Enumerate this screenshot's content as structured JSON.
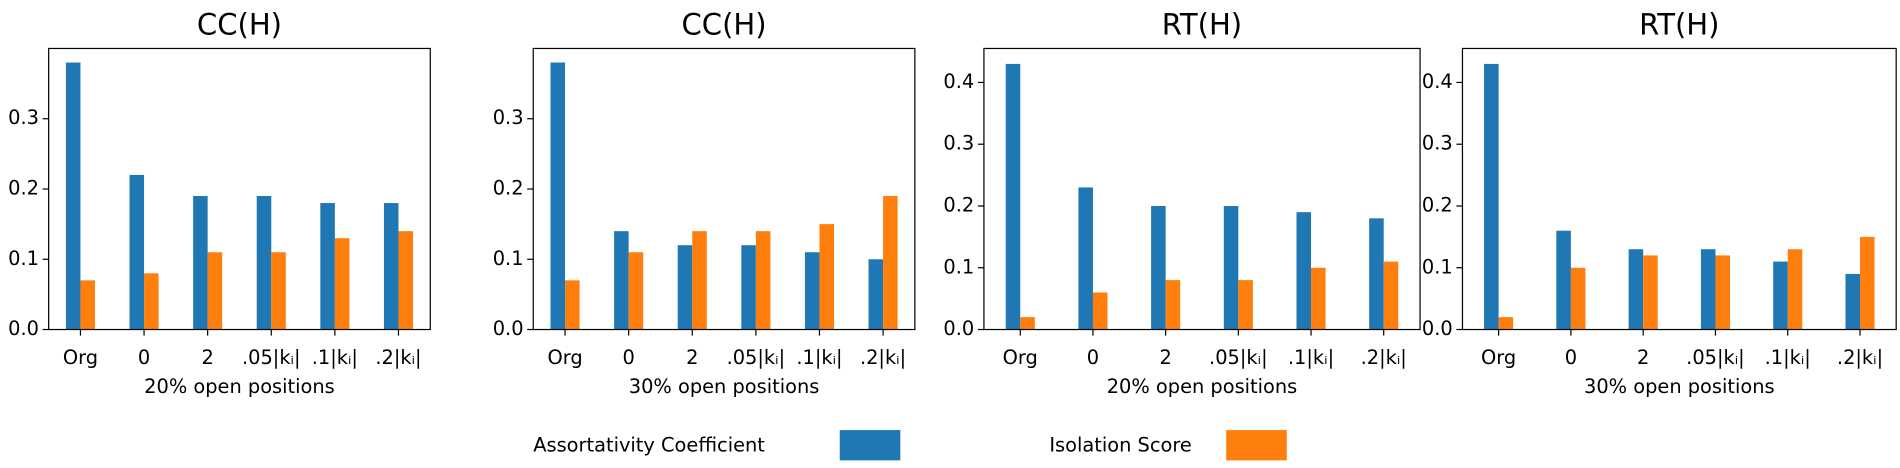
{
  "chart_data": [
    {
      "type": "bar",
      "title": "CC(H)",
      "xlabel": "20% open positions",
      "categories": [
        "Org",
        "0",
        "2",
        ".05|kᵢ|",
        ".1|kᵢ|",
        ".2|kᵢ|"
      ],
      "series": [
        {
          "name": "Assortativity Coefficient",
          "color": "#1f77b4",
          "values": [
            0.38,
            0.22,
            0.19,
            0.19,
            0.18,
            0.18
          ]
        },
        {
          "name": "Isolation Score",
          "color": "#ff7f0e",
          "values": [
            0.07,
            0.08,
            0.11,
            0.11,
            0.13,
            0.14
          ]
        }
      ],
      "ylim": [
        0,
        0.4
      ],
      "yticks": [
        {
          "value": 0,
          "label": "0.0"
        },
        0.1,
        0.2,
        0.3
      ]
    },
    {
      "type": "bar",
      "title": "CC(H)",
      "xlabel": "30% open positions",
      "categories": [
        "Org",
        "0",
        "2",
        ".05|kᵢ|",
        ".1|kᵢ|",
        ".2|kᵢ|"
      ],
      "series": [
        {
          "color": "#1f77b4",
          "values": [
            0.38,
            0.14,
            0.12,
            0.12,
            0.11,
            0.1
          ]
        },
        {
          "color": "#ff7f0e",
          "values": [
            0.07,
            0.11,
            0.14,
            0.14,
            0.15,
            0.19
          ]
        }
      ],
      "ylim": [
        0,
        0.4
      ],
      "yticks": [
        {
          "value": 0,
          "label": "0.0"
        },
        0.1,
        0.2,
        0.3
      ]
    },
    {
      "type": "bar",
      "title": "RT(H)",
      "xlabel": "20% open positions",
      "categories": [
        "Org",
        "0",
        "2",
        ".05|kᵢ|",
        ".1|kᵢ|",
        ".2|kᵢ|"
      ],
      "series": [
        {
          "color": "#1f77b4",
          "values": [
            0.43,
            0.23,
            0.2,
            0.2,
            0.19,
            0.18
          ]
        },
        {
          "color": "#ff7f0e",
          "values": [
            0.02,
            0.06,
            0.08,
            0.08,
            0.1,
            0.11
          ]
        }
      ],
      "ylim": [
        0,
        0.455
      ],
      "yticks": [
        {
          "value": 0,
          "label": "0.0"
        },
        0.1,
        0.2,
        0.3,
        0.4
      ]
    },
    {
      "type": "bar",
      "title": "RT(H)",
      "xlabel": "30% open positions",
      "categories": [
        "Org",
        "0",
        "2",
        ".05|kᵢ|",
        ".1|kᵢ|",
        ".2|kᵢ|"
      ],
      "series": [
        {
          "color": "#1f77b4",
          "values": [
            0.43,
            0.16,
            0.13,
            0.13,
            0.11,
            0.09
          ]
        },
        {
          "color": "#ff7f0e",
          "values": [
            0.02,
            0.1,
            0.12,
            0.12,
            0.13,
            0.15
          ]
        }
      ],
      "ylim": [
        0,
        0.455
      ],
      "yticks": [
        {
          "value": 0,
          "label": "0.0"
        },
        0.1,
        0.2,
        0.3,
        0.4
      ]
    }
  ]
}
